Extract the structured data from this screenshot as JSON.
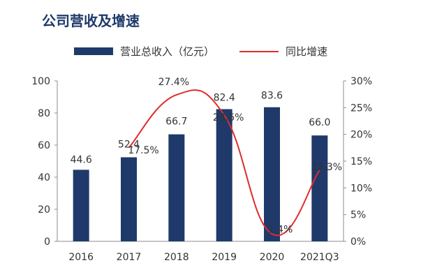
{
  "title": "公司营收及增速",
  "legend": {
    "bar_label": "营业总收入（亿元）",
    "line_label": "同比增速"
  },
  "colors": {
    "bar": "#1f3a6a",
    "line": "#e02b2b",
    "axis": "#8c8c8c",
    "text": "#333333"
  },
  "chart_data": {
    "type": "bar",
    "categories": [
      "2016",
      "2017",
      "2018",
      "2019",
      "2020",
      "2021Q3"
    ],
    "series": [
      {
        "name": "营业总收入（亿元）",
        "type": "bar",
        "axis": "left",
        "values": [
          44.6,
          52.4,
          66.7,
          82.4,
          83.6,
          66.0
        ],
        "labels": [
          "44.6",
          "52.4",
          "66.7",
          "82.4",
          "83.6",
          "66.0"
        ]
      },
      {
        "name": "同比增速",
        "type": "line",
        "axis": "right",
        "values": [
          null,
          17.5,
          27.4,
          23.6,
          1.4,
          13.3
        ],
        "labels": [
          "",
          "17.5%",
          "27.4%",
          "23.6%",
          "1.4%",
          "13.3%"
        ]
      }
    ],
    "y_left": {
      "lim": [
        0,
        100
      ],
      "ticks": [
        "0",
        "20",
        "40",
        "60",
        "80",
        "100"
      ]
    },
    "y_right": {
      "lim": [
        0,
        30
      ],
      "ticks": [
        "0%",
        "5%",
        "10%",
        "15%",
        "20%",
        "25%",
        "30%"
      ]
    },
    "grid": false,
    "legend_position": "top"
  }
}
